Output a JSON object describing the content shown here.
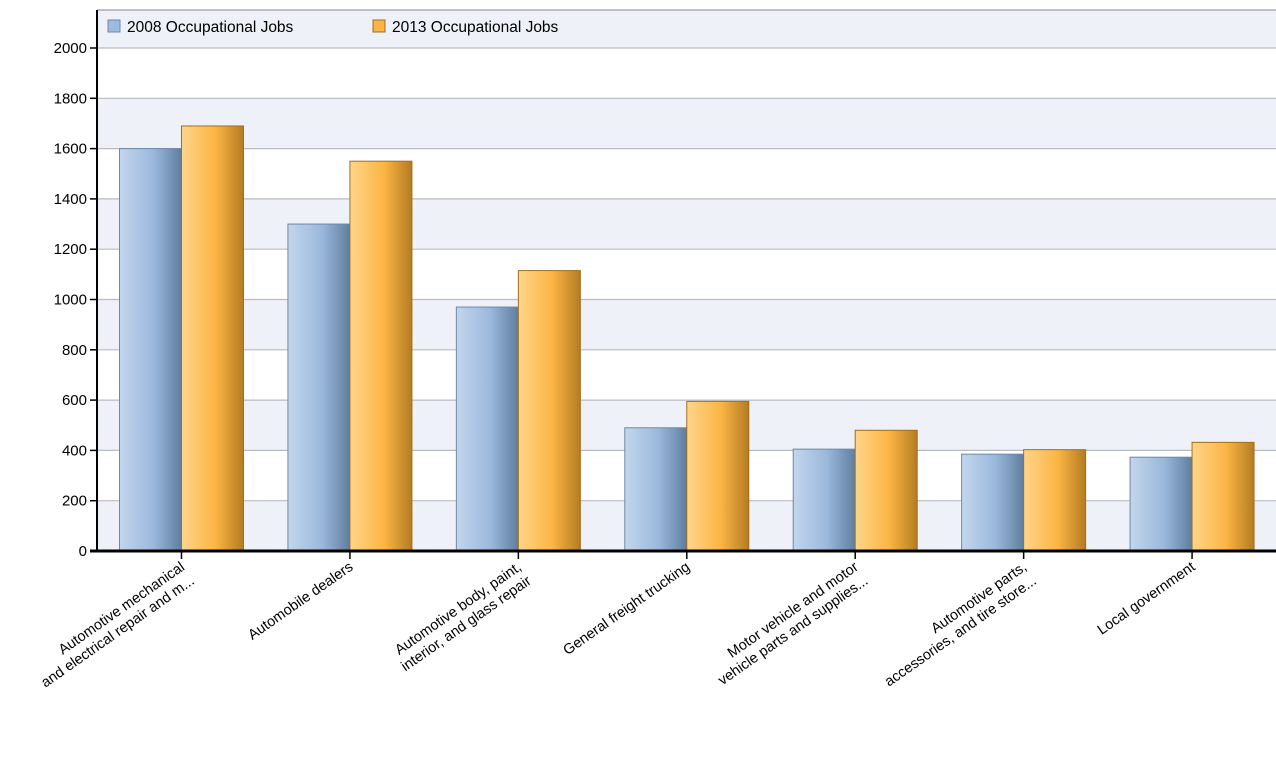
{
  "chart_data": {
    "type": "bar",
    "categories": [
      [
        "Automotive mechanical",
        "and electrical repair and m..."
      ],
      [
        "Automobile dealers"
      ],
      [
        "Automotive body, paint,",
        "interior, and glass repair"
      ],
      [
        "General freight trucking"
      ],
      [
        "Motor vehicle and motor",
        "vehicle parts and supplies..."
      ],
      [
        "Automotive parts,",
        "accessories, and tire store..."
      ],
      [
        "Local government"
      ]
    ],
    "series": [
      {
        "name": "2008 Occupational Jobs",
        "color": "#9dbbdf",
        "values": [
          1600,
          1300,
          970,
          490,
          405,
          385,
          373
        ]
      },
      {
        "name": "2013 Occupational Jobs",
        "color": "#fbb544",
        "values": [
          1690,
          1550,
          1115,
          595,
          480,
          403,
          432
        ]
      }
    ],
    "yticks": [
      0,
      200,
      400,
      600,
      800,
      1000,
      1200,
      1400,
      1600,
      1800,
      2000
    ],
    "ylim": [
      0,
      2000
    ],
    "grid": true,
    "legend_position": "top-left",
    "title": "",
    "xlabel": "",
    "ylabel": ""
  }
}
